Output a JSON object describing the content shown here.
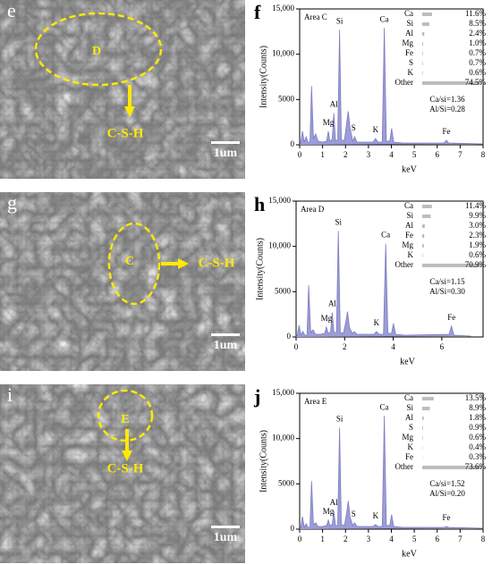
{
  "images": [
    {
      "label": "e",
      "region": "D",
      "phase": "C-S-H",
      "scale": "1um"
    },
    {
      "label": "g",
      "region": "C",
      "phase": "C-S-H",
      "scale": "1um"
    },
    {
      "label": "i",
      "region": "E",
      "phase": "C-S-H",
      "scale": "1um"
    }
  ],
  "chart_data": [
    {
      "type": "area",
      "panel": "f",
      "area": "Area C",
      "x_label": "keV",
      "y_label": "Intensity(Counts)",
      "color": "#9c9cd8",
      "x": [
        0,
        0.05,
        0.12,
        0.2,
        0.28,
        0.36,
        0.45,
        0.52,
        0.6,
        0.7,
        0.8,
        1.0,
        1.18,
        1.25,
        1.32,
        1.42,
        1.49,
        1.56,
        1.66,
        1.74,
        1.82,
        1.95,
        2.05,
        2.12,
        2.2,
        2.32,
        2.4,
        2.5,
        3.2,
        3.31,
        3.42,
        3.6,
        3.69,
        3.78,
        3.93,
        4.01,
        4.1,
        4.5,
        6.3,
        6.4,
        6.5,
        8
      ],
      "values": [
        0,
        300,
        1500,
        300,
        900,
        300,
        300,
        6500,
        700,
        1200,
        400,
        300,
        400,
        1500,
        400,
        600,
        3500,
        500,
        500,
        12700,
        500,
        500,
        2400,
        3700,
        1800,
        400,
        900,
        300,
        300,
        700,
        300,
        300,
        12900,
        400,
        400,
        1800,
        300,
        200,
        200,
        500,
        200,
        100
      ],
      "xlim": [
        0,
        8
      ],
      "xticks": [
        0,
        1,
        2,
        3,
        4,
        5,
        6,
        7,
        8
      ],
      "ylim": [
        0,
        15000
      ],
      "yticks": [
        0,
        5000,
        {
          "value": 10000,
          "label": "10,000"
        },
        {
          "value": 15000,
          "label": "15,000"
        }
      ],
      "peak_labels": [
        {
          "text": "Mg",
          "x": 1.25
        },
        {
          "text": "Al",
          "x": 1.49
        },
        {
          "text": "Si",
          "x": 1.74
        },
        {
          "text": "S",
          "x": 2.35
        },
        {
          "text": "K",
          "x": 3.31
        },
        {
          "text": "Ca",
          "x": 3.69
        },
        {
          "text": "Fe",
          "x": 6.4
        }
      ],
      "composition": [
        {
          "element": "Ca",
          "value": 11.6,
          "label": "11.6%"
        },
        {
          "element": "Si",
          "value": 8.5,
          "label": "8.5%"
        },
        {
          "element": "Al",
          "value": 2.4,
          "label": "2.4%"
        },
        {
          "element": "Mg",
          "value": 1.0,
          "label": "1.0%"
        },
        {
          "element": "Fe",
          "value": 0.7,
          "label": "0.7%"
        },
        {
          "element": "S",
          "value": 0.7,
          "label": "0.7%"
        },
        {
          "element": "K",
          "value": 0.6,
          "label": "0.6%"
        },
        {
          "element": "Other",
          "value": 74.5,
          "label": "74.5%"
        }
      ],
      "ratios": [
        "Ca/si=1.36",
        "Al/Si=0.28"
      ]
    },
    {
      "type": "area",
      "panel": "h",
      "area": "Area D",
      "x_label": "keV",
      "y_label": "Intensity(Counts)",
      "color": "#9c9cd8",
      "x": [
        0,
        0.05,
        0.12,
        0.2,
        0.28,
        0.36,
        0.45,
        0.52,
        0.6,
        0.7,
        0.8,
        1.0,
        1.18,
        1.25,
        1.32,
        1.42,
        1.49,
        1.56,
        1.66,
        1.74,
        1.82,
        1.95,
        2.05,
        2.12,
        2.2,
        2.32,
        2.4,
        2.5,
        3.2,
        3.31,
        3.42,
        3.6,
        3.69,
        3.78,
        3.93,
        4.01,
        4.1,
        4.5,
        6.3,
        6.4,
        6.5,
        7.2
      ],
      "values": [
        0,
        200,
        1300,
        200,
        600,
        200,
        200,
        5700,
        500,
        800,
        300,
        300,
        400,
        1100,
        400,
        500,
        2700,
        500,
        500,
        11700,
        500,
        400,
        1700,
        2800,
        1000,
        400,
        600,
        300,
        300,
        600,
        300,
        300,
        10300,
        400,
        400,
        1500,
        300,
        200,
        300,
        1200,
        200,
        100
      ],
      "xlim": [
        0,
        7.7
      ],
      "xticks": [
        0,
        2,
        4,
        6
      ],
      "ylim": [
        0,
        15000
      ],
      "yticks": [
        0,
        5000,
        {
          "value": 10000,
          "label": "10,000"
        },
        {
          "value": 15000,
          "label": "15,000"
        }
      ],
      "peak_labels": [
        {
          "text": "Mg",
          "x": 1.25
        },
        {
          "text": "Al",
          "x": 1.49
        },
        {
          "text": "Si",
          "x": 1.74
        },
        {
          "text": "Ca",
          "x": 3.69
        },
        {
          "text": "K",
          "x": 3.31
        },
        {
          "text": "Fe",
          "x": 6.4
        }
      ],
      "composition": [
        {
          "element": "Ca",
          "value": 11.4,
          "label": "11.4%"
        },
        {
          "element": "Si",
          "value": 9.9,
          "label": "9.9%"
        },
        {
          "element": "Al",
          "value": 3.0,
          "label": "3.0%"
        },
        {
          "element": "Fe",
          "value": 2.3,
          "label": "2.3%"
        },
        {
          "element": "Mg",
          "value": 1.9,
          "label": "1.9%"
        },
        {
          "element": "K",
          "value": 0.6,
          "label": "0.6%"
        },
        {
          "element": "Other",
          "value": 70.9,
          "label": "70.9%"
        }
      ],
      "ratios": [
        "Ca/si=1.15",
        "Al/Si=0.30"
      ]
    },
    {
      "type": "area",
      "panel": "j",
      "area": "Area E",
      "x_label": "keV",
      "y_label": "Intensity(Counts)",
      "color": "#9c9cd8",
      "x": [
        0,
        0.05,
        0.12,
        0.2,
        0.28,
        0.36,
        0.45,
        0.52,
        0.6,
        0.7,
        0.8,
        1.0,
        1.18,
        1.25,
        1.32,
        1.42,
        1.49,
        1.56,
        1.66,
        1.74,
        1.82,
        1.95,
        2.05,
        2.12,
        2.2,
        2.32,
        2.4,
        2.5,
        3.2,
        3.31,
        3.42,
        3.6,
        3.69,
        3.78,
        3.93,
        4.01,
        4.1,
        4.5,
        6.3,
        6.4,
        6.5,
        8
      ],
      "values": [
        0,
        200,
        1400,
        200,
        600,
        200,
        200,
        5300,
        500,
        700,
        300,
        300,
        400,
        1000,
        400,
        500,
        2000,
        400,
        400,
        11200,
        500,
        400,
        1800,
        3100,
        1300,
        400,
        700,
        300,
        300,
        500,
        300,
        300,
        12500,
        400,
        400,
        1600,
        300,
        200,
        200,
        300,
        200,
        100
      ],
      "xlim": [
        0,
        8
      ],
      "xticks": [
        0,
        1,
        2,
        3,
        4,
        5,
        6,
        7,
        8
      ],
      "ylim": [
        0,
        15000
      ],
      "yticks": [
        0,
        5000,
        {
          "value": 10000,
          "label": "10,000"
        },
        {
          "value": 15000,
          "label": "15,000"
        }
      ],
      "peak_labels": [
        {
          "text": "Mg",
          "x": 1.25
        },
        {
          "text": "Al",
          "x": 1.49
        },
        {
          "text": "Si",
          "x": 1.74
        },
        {
          "text": "S",
          "x": 2.35
        },
        {
          "text": "K",
          "x": 3.31
        },
        {
          "text": "Ca",
          "x": 3.69
        },
        {
          "text": "Fe",
          "x": 6.4
        }
      ],
      "composition": [
        {
          "element": "Ca",
          "value": 13.5,
          "label": "13.5%"
        },
        {
          "element": "Si",
          "value": 8.9,
          "label": "8.9%"
        },
        {
          "element": "Al",
          "value": 1.8,
          "label": "1.8%"
        },
        {
          "element": "S",
          "value": 0.9,
          "label": "0.9%"
        },
        {
          "element": "Mg",
          "value": 0.6,
          "label": "0.6%"
        },
        {
          "element": "K",
          "value": 0.4,
          "label": "0.4%"
        },
        {
          "element": "Fe",
          "value": 0.3,
          "label": "0.3%"
        },
        {
          "element": "Other",
          "value": 73.6,
          "label": "73.6%"
        }
      ],
      "ratios": [
        "Ca/si=1.52",
        "Al/Si=0.20"
      ]
    }
  ]
}
